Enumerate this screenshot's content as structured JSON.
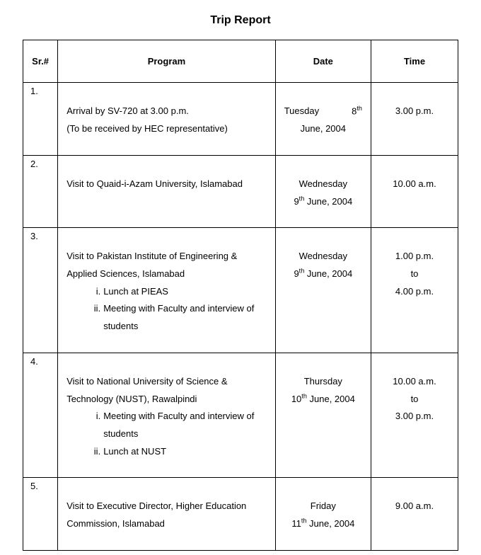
{
  "title": "Trip Report",
  "columns": {
    "sr": "Sr.#",
    "program": "Program",
    "date": "Date",
    "time": "Time"
  },
  "rows": [
    {
      "sr": "1.",
      "program_line1": "Arrival by SV-720 at 3.00 p.m.",
      "program_line2": "(To be received by HEC representative)",
      "date_line1_left": "Tuesday",
      "date_line1_right_num": "8",
      "date_line1_right_sup": "th",
      "date_line2": "June, 2004",
      "time_line1": "3.00 p.m."
    },
    {
      "sr": "2.",
      "program_line1": "Visit to Quaid-i-Azam University, Islamabad",
      "date_line1": "Wednesday",
      "date_line2_pre": "9",
      "date_line2_sup": "th",
      "date_line2_post": " June, 2004",
      "time_line1": "10.00 a.m."
    },
    {
      "sr": "3.",
      "program_line1": "Visit to Pakistan Institute of Engineering & Applied Sciences, Islamabad",
      "sub_items": [
        {
          "roman": "i.",
          "text": "Lunch at PIEAS"
        },
        {
          "roman": "ii.",
          "text": "Meeting with Faculty and interview of students"
        }
      ],
      "date_line1": "Wednesday",
      "date_line2_pre": "9",
      "date_line2_sup": "th",
      "date_line2_post": " June, 2004",
      "time_line1": "1.00 p.m.",
      "time_line2": "to",
      "time_line3": "4.00 p.m."
    },
    {
      "sr": "4.",
      "program_line1": "Visit to National University of Science & Technology (NUST), Rawalpindi",
      "sub_items": [
        {
          "roman": "i.",
          "text": "Meeting with Faculty and interview of students"
        },
        {
          "roman": "ii.",
          "text": "Lunch at NUST"
        }
      ],
      "date_line1": "Thursday",
      "date_line2_pre": "10",
      "date_line2_sup": "th",
      "date_line2_post": " June, 2004",
      "time_line1": "10.00 a.m.",
      "time_line2": "to",
      "time_line3": "3.00 p.m."
    },
    {
      "sr": "5.",
      "program_line1": "Visit to Executive Director, Higher Education Commission, Islamabad",
      "date_line1": "Friday",
      "date_line2_pre": "11",
      "date_line2_sup": "th",
      "date_line2_post": " June, 2004",
      "time_line1": "9.00 a.m."
    }
  ]
}
